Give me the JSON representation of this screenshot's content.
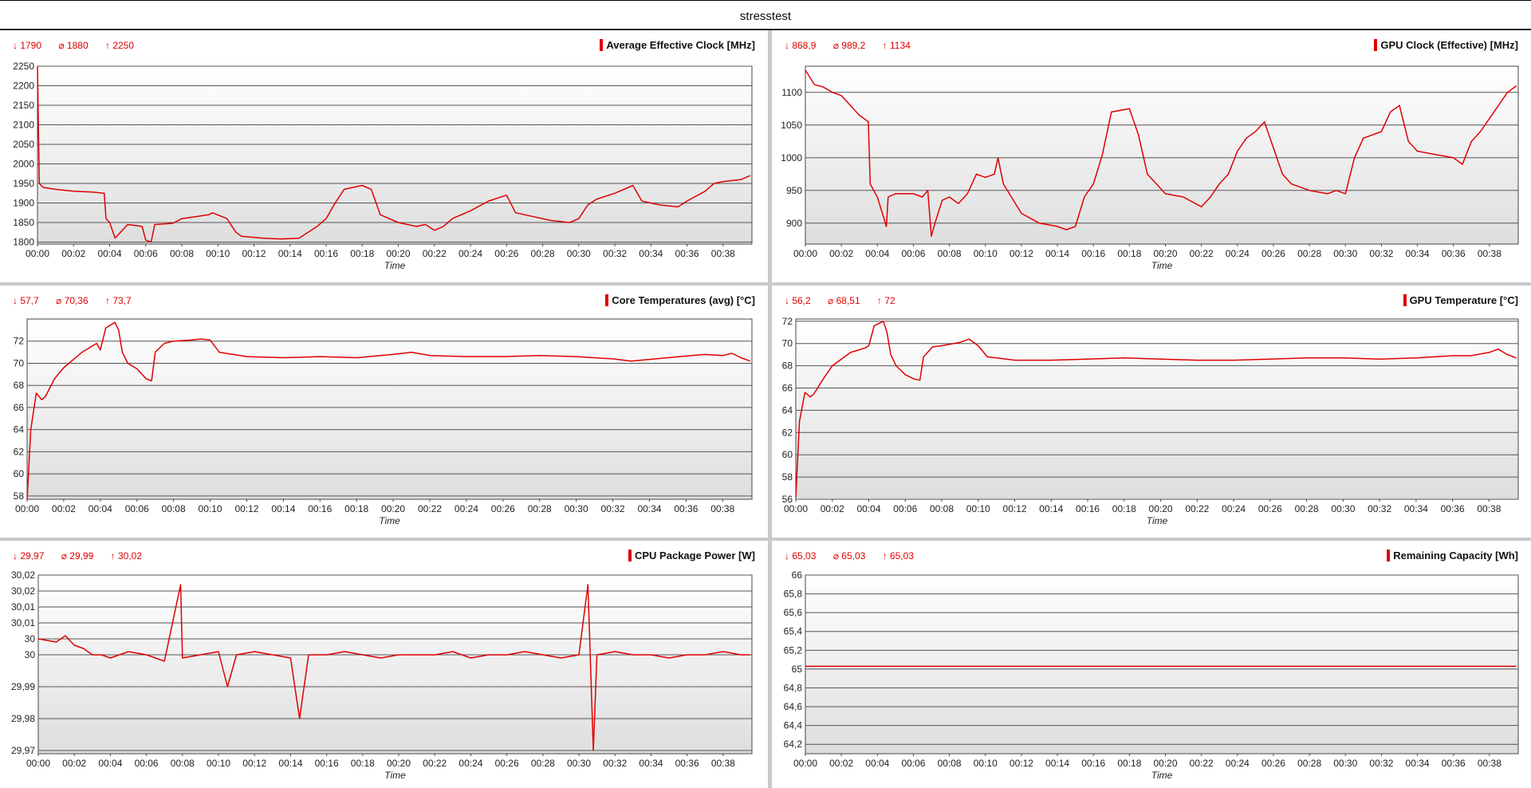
{
  "window": {
    "title": "stresstest"
  },
  "colors": {
    "series": "#e00000",
    "grid": "#555555",
    "plot_top": "#ffffff",
    "plot_bottom": "#dedede"
  },
  "x_ticks": [
    "00:00",
    "00:02",
    "00:04",
    "00:06",
    "00:08",
    "00:10",
    "00:12",
    "00:14",
    "00:16",
    "00:18",
    "00:20",
    "00:22",
    "00:24",
    "00:26",
    "00:28",
    "00:30",
    "00:32",
    "00:34",
    "00:36",
    "00:38"
  ],
  "chart_data": [
    {
      "type": "line",
      "title": "Average Effective Clock [MHz]",
      "xlabel": "Time",
      "stats": {
        "min": "↓ 1790",
        "avg": "⌀ 1880",
        "max": "↑ 2250"
      },
      "ylim": [
        1795,
        2250
      ],
      "yticks": [
        "1800",
        "1850",
        "1900",
        "1950",
        "2000",
        "2050",
        "2100",
        "2150",
        "2200",
        "2250"
      ],
      "ytick_values": [
        1800,
        1850,
        1900,
        1950,
        2000,
        2050,
        2100,
        2150,
        2200,
        2250
      ],
      "x_minutes": [
        0,
        0.1,
        0.3,
        1,
        2,
        3,
        3.7,
        3.8,
        4,
        4.3,
        5,
        5.8,
        6,
        6.3,
        6.5,
        7.5,
        8,
        9.5,
        9.7,
        10.5,
        11,
        11.3,
        12.5,
        13.5,
        14.5,
        15.5,
        16,
        16.5,
        17,
        18,
        18.5,
        19,
        20,
        21,
        21.5,
        22,
        22.5,
        23,
        23.5,
        24,
        25,
        26,
        26.5,
        27.5,
        28.5,
        29.5,
        30,
        30.5,
        31,
        32,
        33,
        33.5,
        34.5,
        35.5,
        36,
        37,
        37.5,
        38,
        39,
        39.5
      ],
      "series": [
        {
          "values": [
            2250,
            1950,
            1940,
            1935,
            1930,
            1928,
            1925,
            1860,
            1850,
            1810,
            1845,
            1840,
            1805,
            1800,
            1845,
            1848,
            1860,
            1870,
            1875,
            1860,
            1825,
            1815,
            1810,
            1808,
            1810,
            1840,
            1860,
            1900,
            1935,
            1945,
            1935,
            1870,
            1850,
            1840,
            1845,
            1830,
            1840,
            1860,
            1870,
            1880,
            1905,
            1920,
            1875,
            1865,
            1855,
            1850,
            1860,
            1895,
            1910,
            1925,
            1945,
            1905,
            1895,
            1890,
            1905,
            1930,
            1950,
            1955,
            1960,
            1970
          ]
        }
      ]
    },
    {
      "type": "line",
      "title": "GPU Clock (Effective) [MHz]",
      "xlabel": "Time",
      "stats": {
        "min": "↓ 868,9",
        "avg": "⌀ 989,2",
        "max": "↑ 1134"
      },
      "ylim": [
        868,
        1140
      ],
      "yticks": [
        "900",
        "950",
        "1000",
        "1050",
        "1100"
      ],
      "ytick_values": [
        900,
        950,
        1000,
        1050,
        1100
      ],
      "x_minutes": [
        0,
        0.5,
        1,
        1.5,
        2,
        3,
        3.5,
        3.6,
        3.8,
        4,
        4.5,
        4.6,
        5,
        6,
        6.5,
        6.8,
        7,
        7.2,
        7.6,
        8,
        8.5,
        9,
        9.5,
        10,
        10.5,
        10.7,
        11,
        12,
        13,
        14,
        14.5,
        15,
        15.5,
        16,
        16.5,
        17,
        18,
        18.5,
        19,
        20,
        21,
        22,
        22.5,
        23,
        23.5,
        24,
        24.5,
        25,
        25.5,
        26,
        26.5,
        27,
        28,
        29,
        29.5,
        30,
        30.5,
        31,
        32,
        32.5,
        33,
        33.5,
        34,
        35,
        36,
        36.5,
        37,
        37.5,
        38,
        38.5,
        39,
        39.5
      ],
      "series": [
        {
          "values": [
            1134,
            1112,
            1108,
            1100,
            1095,
            1065,
            1055,
            960,
            950,
            940,
            895,
            940,
            945,
            945,
            940,
            950,
            880,
            900,
            935,
            940,
            930,
            945,
            975,
            970,
            975,
            1000,
            960,
            915,
            900,
            895,
            890,
            895,
            940,
            960,
            1005,
            1070,
            1075,
            1035,
            975,
            945,
            940,
            925,
            940,
            960,
            975,
            1010,
            1030,
            1040,
            1055,
            1015,
            975,
            960,
            950,
            945,
            950,
            945,
            1000,
            1030,
            1040,
            1070,
            1080,
            1025,
            1010,
            1005,
            1000,
            990,
            1025,
            1040,
            1060,
            1080,
            1100,
            1110
          ]
        }
      ]
    },
    {
      "type": "line",
      "title": "Core Temperatures (avg) [°C]",
      "xlabel": "Time",
      "stats": {
        "min": "↓ 57,7",
        "avg": "⌀ 70,36",
        "max": "↑ 73,7"
      },
      "ylim": [
        57.7,
        74
      ],
      "yticks": [
        "58",
        "60",
        "62",
        "64",
        "66",
        "68",
        "70",
        "72"
      ],
      "ytick_values": [
        58,
        60,
        62,
        64,
        66,
        68,
        70,
        72
      ],
      "x_minutes": [
        0,
        0.2,
        0.5,
        0.8,
        1,
        1.5,
        2,
        3,
        3.8,
        4,
        4.3,
        4.8,
        5,
        5.2,
        5.5,
        6,
        6.5,
        6.8,
        7,
        7.5,
        8,
        9,
        9.5,
        10,
        10.5,
        12,
        14,
        16,
        18,
        20,
        21,
        22,
        24,
        26,
        28,
        30,
        32,
        33,
        35,
        37,
        38,
        38.5,
        39,
        39.5
      ],
      "series": [
        {
          "values": [
            57.7,
            64,
            67.3,
            66.7,
            67,
            68.6,
            69.6,
            71.0,
            71.8,
            71.2,
            73.2,
            73.7,
            73.0,
            71,
            70,
            69.5,
            68.6,
            68.4,
            71,
            71.8,
            72.0,
            72.1,
            72.2,
            72.1,
            71.0,
            70.6,
            70.5,
            70.6,
            70.5,
            70.8,
            71.0,
            70.7,
            70.6,
            70.6,
            70.7,
            70.6,
            70.4,
            70.2,
            70.5,
            70.8,
            70.7,
            70.9,
            70.5,
            70.2
          ]
        }
      ]
    },
    {
      "type": "line",
      "title": "GPU Temperature [°C]",
      "xlabel": "Time",
      "stats": {
        "min": "↓ 56,2",
        "avg": "⌀ 68,51",
        "max": "↑ 72"
      },
      "ylim": [
        56,
        72.2
      ],
      "yticks": [
        "56",
        "58",
        "60",
        "62",
        "64",
        "66",
        "68",
        "70",
        "72"
      ],
      "ytick_values": [
        56,
        58,
        60,
        62,
        64,
        66,
        68,
        70,
        72
      ],
      "x_minutes": [
        0,
        0.2,
        0.5,
        0.8,
        1,
        1.5,
        2,
        3,
        3.8,
        4,
        4.3,
        4.8,
        5,
        5.2,
        5.5,
        6,
        6.5,
        6.8,
        7,
        7.5,
        8,
        9,
        9.5,
        10,
        10.5,
        12,
        14,
        16,
        18,
        20,
        22,
        24,
        26,
        28,
        30,
        32,
        34,
        36,
        37,
        38,
        38.5,
        39,
        39.5
      ],
      "series": [
        {
          "values": [
            56.2,
            63,
            65.6,
            65.2,
            65.5,
            66.8,
            68,
            69.2,
            69.6,
            69.8,
            71.6,
            72,
            71,
            69,
            68,
            67.2,
            66.8,
            66.7,
            68.8,
            69.7,
            69.8,
            70.1,
            70.4,
            69.8,
            68.8,
            68.5,
            68.5,
            68.6,
            68.7,
            68.6,
            68.5,
            68.5,
            68.6,
            68.7,
            68.7,
            68.6,
            68.7,
            68.9,
            68.9,
            69.2,
            69.5,
            69.0,
            68.7
          ]
        }
      ]
    },
    {
      "type": "line",
      "title": "CPU Package Power [W]",
      "xlabel": "Time",
      "stats": {
        "min": "↓ 29,97",
        "avg": "⌀ 29,99",
        "max": "↑ 30,02"
      },
      "ylim": [
        29.969,
        30.025
      ],
      "yticks": [
        "29,97",
        "29,98",
        "29,99",
        "30",
        "30",
        "30,01",
        "30,01",
        "30,02",
        "30,02"
      ],
      "ytick_values": [
        29.97,
        29.98,
        29.99,
        30.0,
        30.005,
        30.01,
        30.015,
        30.02,
        30.025
      ],
      "x_minutes": [
        0,
        1,
        1.5,
        2,
        2.5,
        3,
        3.5,
        4,
        5,
        6,
        7,
        7.9,
        8,
        9,
        10,
        10.5,
        11,
        12,
        13,
        14,
        14.5,
        15,
        16,
        17,
        18,
        19,
        20,
        21,
        22,
        23,
        24,
        25,
        26,
        27,
        28,
        29,
        30,
        30.5,
        30.8,
        31,
        32,
        33,
        34,
        35,
        36,
        37,
        38,
        39,
        39.5
      ],
      "series": [
        {
          "values": [
            30.005,
            30.004,
            30.006,
            30.003,
            30.002,
            30.0,
            30.0,
            29.999,
            30.001,
            30.0,
            29.998,
            30.022,
            29.999,
            30.0,
            30.001,
            29.99,
            30.0,
            30.001,
            30.0,
            29.999,
            29.98,
            30.0,
            30.0,
            30.001,
            30.0,
            29.999,
            30.0,
            30.0,
            30.0,
            30.001,
            29.999,
            30.0,
            30.0,
            30.001,
            30.0,
            29.999,
            30.0,
            30.022,
            29.97,
            30.0,
            30.001,
            30.0,
            30.0,
            29.999,
            30.0,
            30.0,
            30.001,
            30.0,
            30.0
          ]
        }
      ]
    },
    {
      "type": "line",
      "title": "Remaining Capacity [Wh]",
      "xlabel": "Time",
      "stats": {
        "min": "↓ 65,03",
        "avg": "⌀ 65,03",
        "max": "↑ 65,03"
      },
      "ylim": [
        64.1,
        66
      ],
      "yticks": [
        "64,2",
        "64,4",
        "64,6",
        "64,8",
        "65",
        "65,2",
        "65,4",
        "65,6",
        "65,8",
        "66"
      ],
      "ytick_values": [
        64.2,
        64.4,
        64.6,
        64.8,
        65,
        65.2,
        65.4,
        65.6,
        65.8,
        66
      ],
      "x_minutes": [
        0,
        39.5
      ],
      "series": [
        {
          "values": [
            65.03,
            65.03
          ]
        }
      ]
    }
  ]
}
